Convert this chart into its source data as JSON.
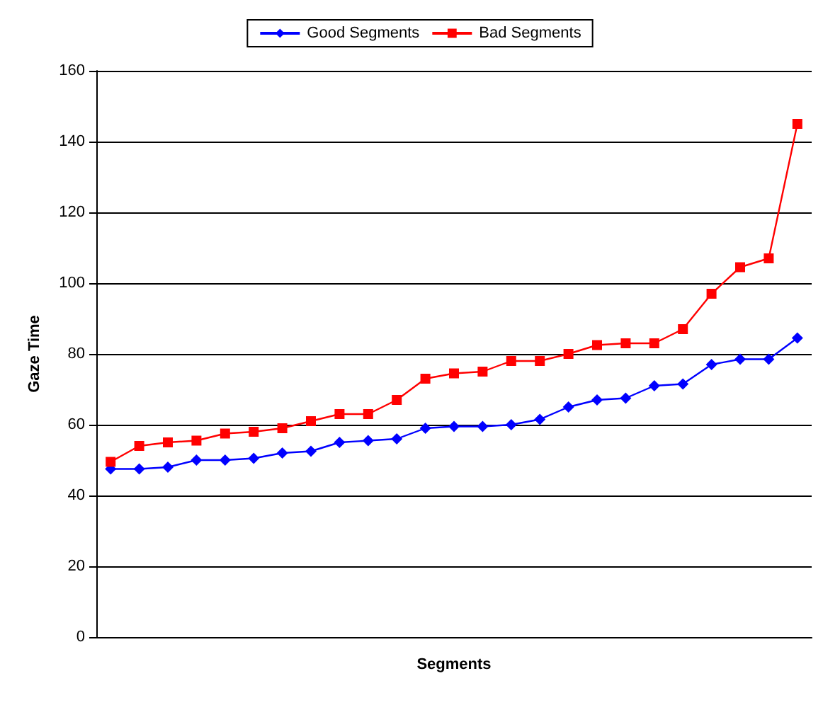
{
  "chart_data": {
    "type": "line",
    "xlabel": "Segments",
    "ylabel": "Gaze Time",
    "categories": [
      null,
      null,
      null,
      null,
      null,
      null,
      null,
      null,
      null,
      null,
      null,
      null,
      null,
      null,
      null,
      null,
      null,
      null,
      null,
      null,
      null,
      null,
      null,
      null,
      null
    ],
    "series": [
      {
        "name": "Good Segments",
        "color": "#0000ff",
        "marker": "diamond",
        "values": [
          47.5,
          47.5,
          48,
          50,
          50,
          50.5,
          52,
          52.5,
          55,
          55.5,
          56,
          59,
          59.5,
          59.5,
          60,
          61.5,
          65,
          67,
          67.5,
          71,
          71.5,
          77,
          78.5,
          78.5,
          84.5
        ]
      },
      {
        "name": "Bad Segments",
        "color": "#ff0000",
        "marker": "square",
        "values": [
          49.5,
          54,
          55,
          55.5,
          57.5,
          58,
          59,
          61,
          63,
          63,
          67,
          73,
          74.5,
          75,
          78,
          78,
          80,
          82.5,
          83,
          83,
          87,
          97,
          104.5,
          107,
          145
        ]
      }
    ],
    "ylim": [
      0,
      160
    ],
    "yticks": [
      0,
      20,
      40,
      60,
      80,
      100,
      120,
      140,
      160
    ],
    "grid": "y",
    "legend": "top",
    "line_style": "solid"
  }
}
